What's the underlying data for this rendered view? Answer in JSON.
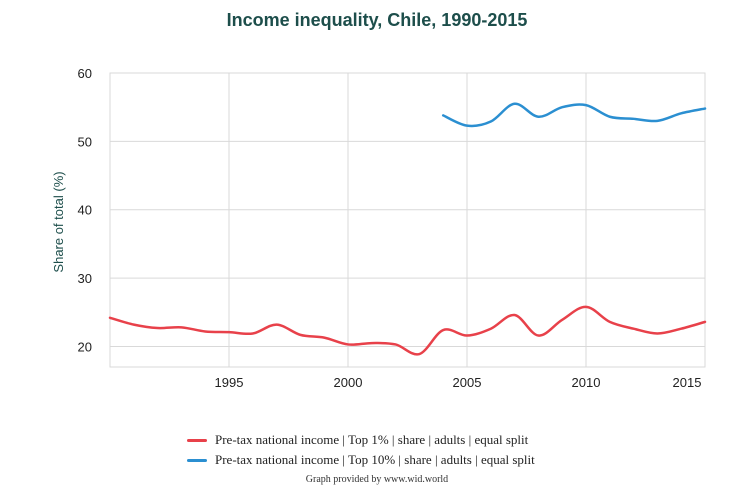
{
  "chart_data": {
    "type": "line",
    "title": "Income inequality, Chile, 1990-2015",
    "xlabel": "",
    "ylabel": "Share of total (%)",
    "xlim": [
      1990,
      2015
    ],
    "ylim": [
      17,
      60
    ],
    "x_ticks": [
      1995,
      2000,
      2005,
      2010,
      2015
    ],
    "y_ticks": [
      20,
      30,
      40,
      50,
      60
    ],
    "grid": true,
    "legend_position": "bottom",
    "series": [
      {
        "name": "Pre-tax national income | Top 1% | share | adults | equal split",
        "color": "#e8414a",
        "x": [
          1990,
          1991,
          1992,
          1993,
          1994,
          1995,
          1996,
          1997,
          1998,
          1999,
          2000,
          2001,
          2002,
          2003,
          2004,
          2005,
          2006,
          2007,
          2008,
          2009,
          2010,
          2011,
          2012,
          2013,
          2014,
          2015
        ],
        "y": [
          24.2,
          23.2,
          22.7,
          22.8,
          22.2,
          22.1,
          21.9,
          23.2,
          21.7,
          21.3,
          20.3,
          20.5,
          20.3,
          18.9,
          22.4,
          21.6,
          22.6,
          24.6,
          21.6,
          23.9,
          25.8,
          23.6,
          22.6,
          21.9,
          22.6,
          23.6
        ]
      },
      {
        "name": "Pre-tax national income | Top 10% | share | adults | equal split",
        "color": "#2b8fd1",
        "x": [
          2004,
          2005,
          2006,
          2007,
          2008,
          2009,
          2010,
          2011,
          2012,
          2013,
          2014,
          2015
        ],
        "y": [
          53.8,
          52.3,
          52.9,
          55.5,
          53.6,
          55.0,
          55.3,
          53.6,
          53.3,
          53.0,
          54.1,
          54.8
        ]
      }
    ]
  },
  "credit": "Graph provided by www.wid.world"
}
